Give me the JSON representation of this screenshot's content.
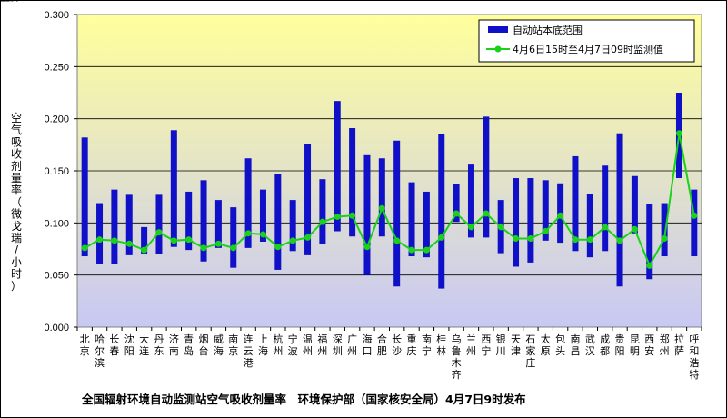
{
  "chart_data": {
    "type": "bar",
    "title": "",
    "caption": "全国辐射环境自动监测站空气吸收剂量率　环境保护部（国家核安全局）4月7日9时发布",
    "ylabel": "空气吸收剂量率（微戈瑞/小时）",
    "xlabel": "",
    "ylim": [
      0,
      0.3
    ],
    "yticks": [
      "0.000",
      "0.050",
      "0.100",
      "0.150",
      "0.200",
      "0.250",
      "0.300"
    ],
    "legend_position": "top-right",
    "series_names": {
      "range": "自动站本底范围",
      "current": "4月6日15时至4月7日09时监测值"
    },
    "colors": {
      "range": "#1010c8",
      "current": "#19d219",
      "bg_top": "#ffff9c",
      "bg_bottom": "#c8c8f4"
    },
    "categories": [
      "北京",
      "哈尔滨",
      "长春",
      "沈阳",
      "大连",
      "丹东",
      "济南",
      "青岛",
      "烟台",
      "威海",
      "南京",
      "连云港",
      "上海",
      "杭州",
      "宁波",
      "温州",
      "福州",
      "深圳",
      "广州",
      "海口",
      "合肥",
      "长沙",
      "重庆",
      "南宁",
      "桂林",
      "乌鲁木齐",
      "兰州",
      "西宁",
      "银川",
      "天津",
      "石家庄",
      "太原",
      "包头",
      "南昌",
      "武汉",
      "成都",
      "贵阳",
      "昆明",
      "西安",
      "郑州",
      "拉萨",
      "呼和浩特"
    ],
    "range_low": [
      0.068,
      0.061,
      0.061,
      0.069,
      0.07,
      0.07,
      0.077,
      0.074,
      0.063,
      0.076,
      0.057,
      0.076,
      0.082,
      0.055,
      0.073,
      0.069,
      0.08,
      0.092,
      0.087,
      0.05,
      0.087,
      0.039,
      0.068,
      0.067,
      0.037,
      0.101,
      0.086,
      0.086,
      0.071,
      0.058,
      0.062,
      0.083,
      0.081,
      0.073,
      0.067,
      0.073,
      0.039,
      0.09,
      0.046,
      0.068,
      0.143,
      0.068
    ],
    "range_high": [
      0.182,
      0.119,
      0.132,
      0.127,
      0.096,
      0.127,
      0.189,
      0.13,
      0.141,
      0.122,
      0.115,
      0.162,
      0.132,
      0.147,
      0.122,
      0.176,
      0.142,
      0.217,
      0.191,
      0.165,
      0.162,
      0.179,
      0.139,
      0.13,
      0.185,
      0.137,
      0.156,
      0.202,
      0.122,
      0.143,
      0.143,
      0.141,
      0.138,
      0.164,
      0.128,
      0.155,
      0.186,
      0.145,
      0.118,
      0.119,
      0.225,
      0.132
    ],
    "current": [
      0.076,
      0.084,
      0.083,
      0.08,
      0.074,
      0.091,
      0.083,
      0.084,
      0.076,
      0.08,
      0.076,
      0.09,
      0.089,
      0.077,
      0.083,
      0.086,
      0.101,
      0.106,
      0.107,
      0.077,
      0.114,
      0.083,
      0.074,
      0.074,
      0.086,
      0.109,
      0.096,
      0.109,
      0.096,
      0.085,
      0.085,
      0.092,
      0.107,
      0.084,
      0.084,
      0.096,
      0.083,
      0.094,
      0.059,
      0.085,
      0.186,
      0.107
    ]
  }
}
